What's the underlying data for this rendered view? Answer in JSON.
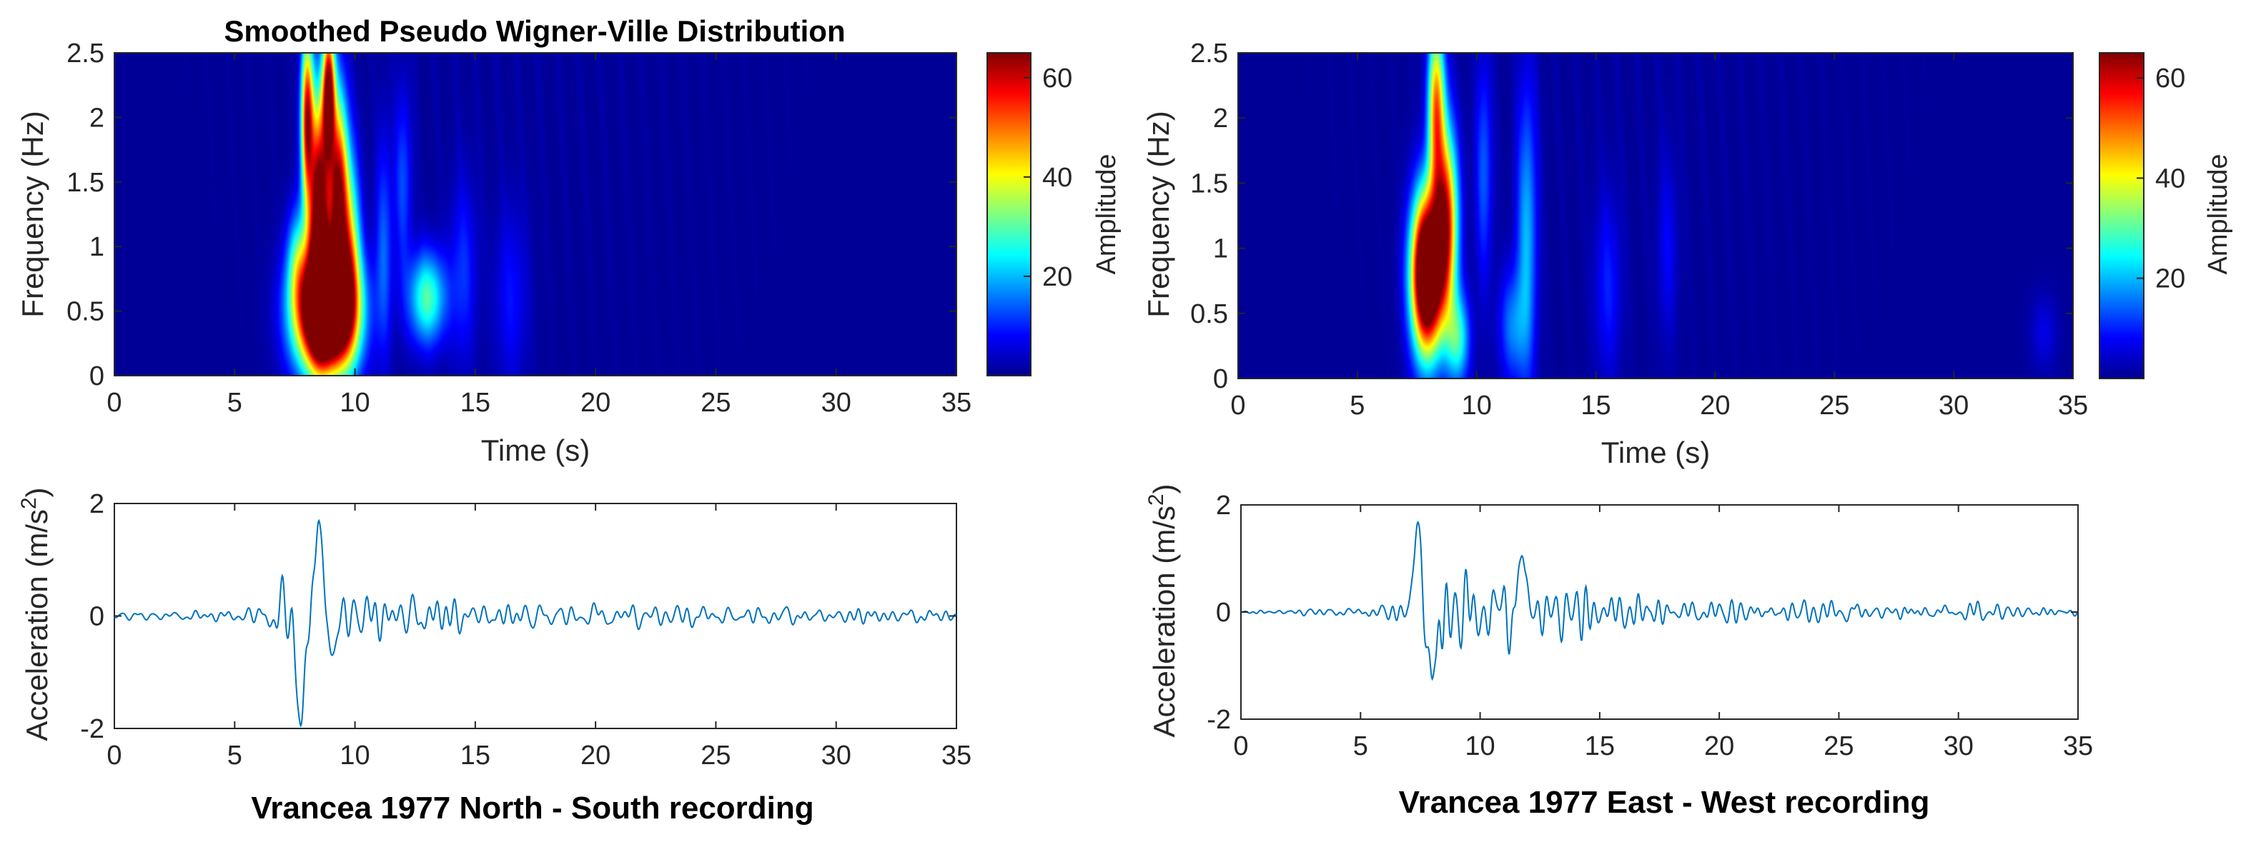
{
  "figure_title": "Smoothed Pseudo Wigner-Ville Distribution",
  "colors": {
    "background": "#ffffff",
    "axis": "#262626",
    "signal": "#0072bd",
    "spectrum_base": "#00008f",
    "jet_low": "#00008f",
    "jet_mid_low": "#0080ff",
    "jet_mid": "#80ff80",
    "jet_mid_high": "#ff8000",
    "jet_high": "#800000"
  },
  "chart_data": [
    {
      "type": "heatmap",
      "panel": "north-south-spectrogram",
      "title": "Smoothed Pseudo Wigner-Ville Distribution",
      "xlabel": "Time (s)",
      "ylabel": "Frequency (Hz)",
      "xlim": [
        0,
        35
      ],
      "ylim": [
        0,
        2.5
      ],
      "xticks": [
        "0",
        "5",
        "10",
        "15",
        "20",
        "25",
        "30",
        "35"
      ],
      "yticks": [
        "0",
        "0.5",
        "1",
        "1.5",
        "2",
        "2.5"
      ],
      "colorbar": {
        "label": "Amplitude",
        "clim": [
          0,
          65
        ],
        "ticks": [
          "20",
          "40",
          "60"
        ]
      },
      "features": [
        {
          "t": 8.8,
          "f": 0.5,
          "st": 0.85,
          "sf": 0.33,
          "amp": 110
        },
        {
          "t": 8.5,
          "f": 1.3,
          "st": 0.3,
          "sf": 0.6,
          "amp": 70
        },
        {
          "t": 9.3,
          "f": 1.4,
          "st": 0.28,
          "sf": 0.55,
          "amp": 60
        },
        {
          "t": 8.0,
          "f": 2.0,
          "st": 0.18,
          "sf": 0.45,
          "amp": 55
        },
        {
          "t": 8.9,
          "f": 2.2,
          "st": 0.18,
          "sf": 0.35,
          "amp": 60
        },
        {
          "t": 9.8,
          "f": 1.0,
          "st": 0.3,
          "sf": 0.5,
          "amp": 30
        },
        {
          "t": 13.0,
          "f": 0.6,
          "st": 0.55,
          "sf": 0.25,
          "amp": 28
        },
        {
          "t": 7.6,
          "f": 0.9,
          "st": 0.3,
          "sf": 0.3,
          "amp": 18
        },
        {
          "t": 11.2,
          "f": 1.0,
          "st": 0.25,
          "sf": 0.6,
          "amp": 12
        },
        {
          "t": 12.0,
          "f": 1.5,
          "st": 0.25,
          "sf": 0.5,
          "amp": 11
        },
        {
          "t": 14.5,
          "f": 0.8,
          "st": 0.4,
          "sf": 0.5,
          "amp": 9
        },
        {
          "t": 16.5,
          "f": 0.6,
          "st": 0.5,
          "sf": 0.5,
          "amp": 7
        }
      ]
    },
    {
      "type": "heatmap",
      "panel": "east-west-spectrogram",
      "title": "",
      "xlabel": "Time (s)",
      "ylabel": "Frequency (Hz)",
      "xlim": [
        0,
        35
      ],
      "ylim": [
        0,
        2.5
      ],
      "xticks": [
        "0",
        "5",
        "10",
        "15",
        "20",
        "25",
        "30",
        "35"
      ],
      "yticks": [
        "0",
        "0.5",
        "1",
        "1.5",
        "2",
        "2.5"
      ],
      "colorbar": {
        "label": "Amplitude",
        "clim": [
          0,
          65
        ],
        "ticks": [
          "20",
          "40",
          "60"
        ]
      },
      "features": [
        {
          "t": 7.9,
          "f": 0.8,
          "st": 0.45,
          "sf": 0.42,
          "amp": 95
        },
        {
          "t": 8.7,
          "f": 1.2,
          "st": 0.35,
          "sf": 0.5,
          "amp": 55
        },
        {
          "t": 8.3,
          "f": 2.1,
          "st": 0.25,
          "sf": 0.45,
          "amp": 45
        },
        {
          "t": 9.2,
          "f": 0.3,
          "st": 0.35,
          "sf": 0.25,
          "amp": 25
        },
        {
          "t": 12.1,
          "f": 1.1,
          "st": 0.3,
          "sf": 0.8,
          "amp": 18
        },
        {
          "t": 11.5,
          "f": 0.4,
          "st": 0.4,
          "sf": 0.3,
          "amp": 14
        },
        {
          "t": 10.3,
          "f": 1.6,
          "st": 0.25,
          "sf": 0.6,
          "amp": 12
        },
        {
          "t": 15.5,
          "f": 0.7,
          "st": 0.4,
          "sf": 0.5,
          "amp": 8
        },
        {
          "t": 18.0,
          "f": 1.0,
          "st": 0.3,
          "sf": 0.5,
          "amp": 6
        },
        {
          "t": 33.8,
          "f": 0.35,
          "st": 0.4,
          "sf": 0.2,
          "amp": 5
        }
      ]
    },
    {
      "type": "line",
      "panel": "north-south-acceleration",
      "xlabel": "",
      "ylabel": "Acceleration (m/s",
      "ylabel_sup": "2",
      "ylabel_end": ")",
      "xlim": [
        0,
        35
      ],
      "ylim": [
        -2,
        2
      ],
      "xticks": [
        "0",
        "5",
        "10",
        "15",
        "20",
        "25",
        "30",
        "35"
      ],
      "yticks": [
        "-2",
        "0",
        "2"
      ],
      "caption": "Vrancea 1977 North - South recording",
      "envelope": [
        [
          0,
          0.08
        ],
        [
          5,
          0.15
        ],
        [
          6.5,
          0.3
        ],
        [
          7.2,
          0.6
        ],
        [
          7.8,
          1.75
        ],
        [
          8.5,
          1.6
        ],
        [
          9.2,
          0.8
        ],
        [
          10,
          0.6
        ],
        [
          11,
          0.55
        ],
        [
          12.5,
          0.5
        ],
        [
          15,
          0.35
        ],
        [
          20,
          0.3
        ],
        [
          25,
          0.25
        ],
        [
          30,
          0.22
        ],
        [
          35,
          0.1
        ]
      ],
      "peaks": [
        {
          "t": 7.75,
          "value": -1.95
        },
        {
          "t": 8.5,
          "value": 1.7
        },
        {
          "t": 9.05,
          "value": -0.7
        }
      ],
      "seed": 17
    },
    {
      "type": "line",
      "panel": "east-west-acceleration",
      "xlabel": "",
      "ylabel": "Acceleration (m/s",
      "ylabel_sup": "2",
      "ylabel_end": ")",
      "xlim": [
        0,
        35
      ],
      "ylim": [
        -2,
        2
      ],
      "xticks": [
        "0",
        "5",
        "10",
        "15",
        "20",
        "25",
        "30",
        "35"
      ],
      "yticks": [
        "-2",
        "0",
        "2"
      ],
      "caption": "Vrancea 1977 East - West recording",
      "envelope": [
        [
          0,
          0.05
        ],
        [
          6,
          0.12
        ],
        [
          7,
          0.4
        ],
        [
          7.5,
          1.6
        ],
        [
          8.2,
          1.2
        ],
        [
          9,
          0.8
        ],
        [
          10.5,
          0.7
        ],
        [
          11.8,
          0.9
        ],
        [
          13,
          0.55
        ],
        [
          15,
          0.5
        ],
        [
          20,
          0.28
        ],
        [
          25,
          0.22
        ],
        [
          30,
          0.2
        ],
        [
          35,
          0.1
        ]
      ],
      "peaks": [
        {
          "t": 7.4,
          "value": 1.68
        },
        {
          "t": 8.0,
          "value": -1.25
        },
        {
          "t": 11.75,
          "value": 1.05
        }
      ],
      "seed": 41
    }
  ]
}
